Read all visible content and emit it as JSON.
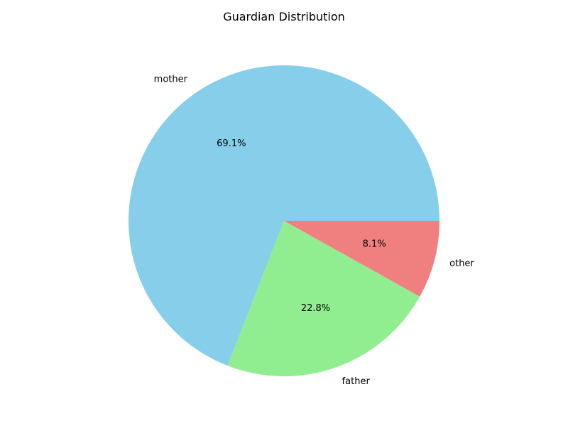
{
  "chart_data": {
    "type": "pie",
    "title": "Guardian Distribution",
    "slices": [
      {
        "label": "mother",
        "value": 69.1,
        "pct_label": "69.1%",
        "color": "#87CEEB"
      },
      {
        "label": "father",
        "value": 22.8,
        "pct_label": "22.8%",
        "color": "#90EE90"
      },
      {
        "label": "other",
        "value": 8.1,
        "pct_label": "8.1%",
        "color": "#F08080"
      }
    ],
    "start_angle_deg": 0,
    "direction": "counterclockwise",
    "legend": "none"
  }
}
